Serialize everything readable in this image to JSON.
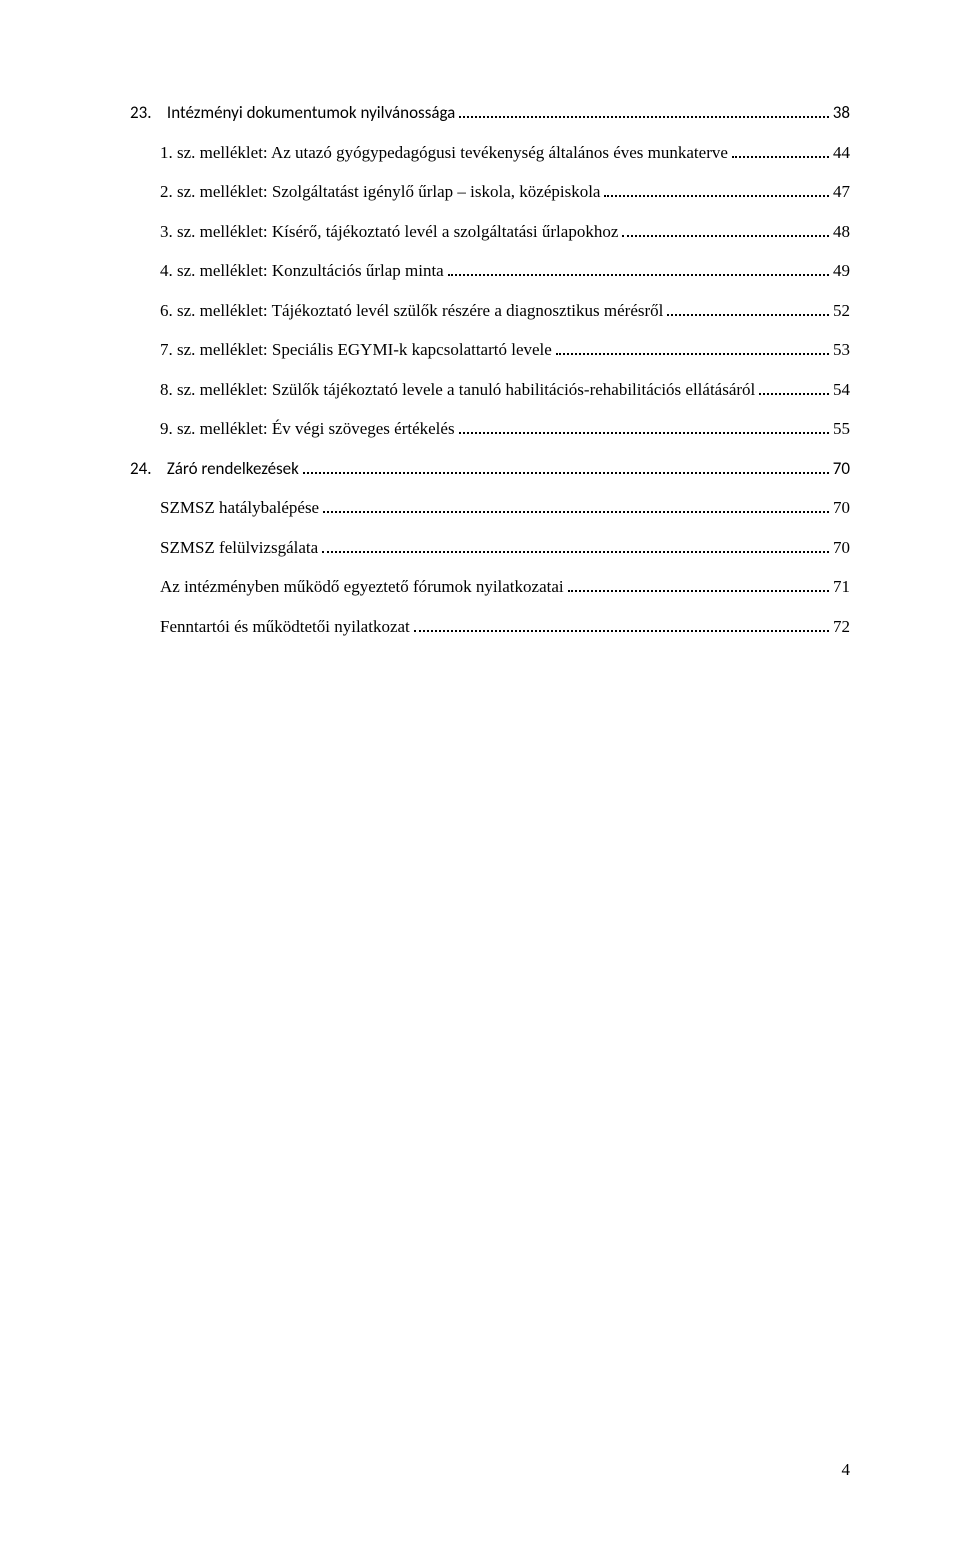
{
  "entries": [
    {
      "num": "23.",
      "label": "Intézményi dokumentumok nyilvánossága",
      "page": "38",
      "indent": 0,
      "font": "calibri",
      "numpad": "    "
    },
    {
      "num": "",
      "label": "1. sz. melléklet: Az utazó gyógypedagógusi tevékenység általános éves munkaterve",
      "page": "44",
      "indent": 1,
      "font": "serif",
      "numpad": ""
    },
    {
      "num": "",
      "label": "2. sz. melléklet: Szolgáltatást igénylő űrlap – iskola, középiskola",
      "page": "47",
      "indent": 1,
      "font": "serif",
      "numpad": ""
    },
    {
      "num": "",
      "label": "3. sz. melléklet: Kísérő, tájékoztató levél a szolgáltatási űrlapokhoz",
      "page": "48",
      "indent": 1,
      "font": "serif",
      "numpad": ""
    },
    {
      "num": "",
      "label": "4. sz. melléklet: Konzultációs űrlap minta",
      "page": "49",
      "indent": 1,
      "font": "serif",
      "numpad": ""
    },
    {
      "num": "",
      "label": "6. sz. melléklet: Tájékoztató levél szülők részére a diagnosztikus mérésről",
      "page": "52",
      "indent": 1,
      "font": "serif",
      "numpad": ""
    },
    {
      "num": "",
      "label": "7. sz. melléklet: Speciális EGYMI-k kapcsolattartó levele",
      "page": "53",
      "indent": 1,
      "font": "serif",
      "numpad": ""
    },
    {
      "num": "",
      "label": "8. sz. melléklet: Szülők tájékoztató levele a tanuló habilitációs-rehabilitációs ellátásáról",
      "page": "54",
      "indent": 1,
      "font": "serif",
      "numpad": ""
    },
    {
      "num": "",
      "label": "9. sz. melléklet: Év végi szöveges értékelés",
      "page": "55",
      "indent": 1,
      "font": "serif",
      "numpad": ""
    },
    {
      "num": "24.",
      "label": "Záró rendelkezések",
      "page": "70",
      "indent": 0,
      "font": "calibri",
      "numpad": "    "
    },
    {
      "num": "",
      "label": "SZMSZ hatálybalépése",
      "page": "70",
      "indent": 1,
      "font": "serif",
      "numpad": ""
    },
    {
      "num": "",
      "label": "SZMSZ felülvizsgálata",
      "page": "70",
      "indent": 1,
      "font": "serif",
      "numpad": ""
    },
    {
      "num": "",
      "label": "Az intézményben működő egyeztető fórumok nyilatkozatai",
      "page": "71",
      "indent": 1,
      "font": "serif",
      "numpad": ""
    },
    {
      "num": "",
      "label": "Fenntartói és működtetői nyilatkozat",
      "page": "72",
      "indent": 1,
      "font": "serif",
      "numpad": ""
    }
  ],
  "pageNumber": "4"
}
